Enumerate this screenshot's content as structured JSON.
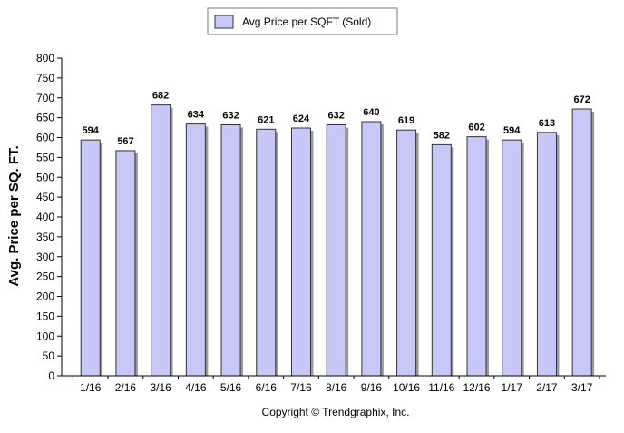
{
  "chart_data": {
    "type": "bar",
    "title": "",
    "xlabel": "",
    "ylabel": "Avg. Price per SQ. FT.",
    "categories": [
      "1/16",
      "2/16",
      "3/16",
      "4/16",
      "5/16",
      "6/16",
      "7/16",
      "8/16",
      "9/16",
      "10/16",
      "11/16",
      "12/16",
      "1/17",
      "2/17",
      "3/17"
    ],
    "series": [
      {
        "name": "Avg Price per SQFT (Sold)",
        "values": [
          594,
          567,
          682,
          634,
          632,
          621,
          624,
          632,
          640,
          619,
          582,
          602,
          594,
          613,
          672
        ],
        "color": "#c8c8f8"
      }
    ],
    "ylim": [
      0,
      800
    ],
    "yticks": [
      0,
      50,
      100,
      150,
      200,
      250,
      300,
      350,
      400,
      450,
      500,
      550,
      600,
      650,
      700,
      750,
      800
    ],
    "grid": false,
    "legend_position": "top-center",
    "data_labels": true,
    "annotation": "Copyright © Trendgraphix, Inc."
  }
}
